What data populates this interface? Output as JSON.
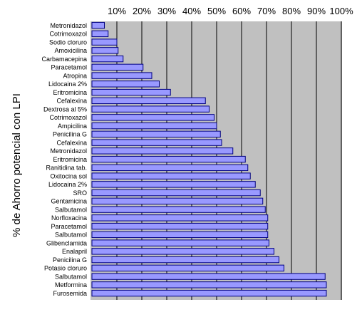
{
  "chart_data": {
    "type": "bar",
    "orientation": "horizontal",
    "title": "",
    "xlabel": "",
    "ylabel": "% de Ahorro potencial con LPI",
    "xlim": [
      0,
      100
    ],
    "x_ticks": [
      "10%",
      "20%",
      "30%",
      "40%",
      "50%",
      "60%",
      "70%",
      "80%",
      "90%",
      "100%"
    ],
    "x_tick_values": [
      10,
      20,
      30,
      40,
      50,
      60,
      70,
      80,
      90,
      100
    ],
    "x_tick_position": "top",
    "grid": true,
    "legend": "none",
    "colors": {
      "bar_fill": "#9999ff",
      "bar_stroke": "#000080",
      "plot_background": "#c0c0c0",
      "gridline": "#000000"
    },
    "categories": [
      "Metronidazol",
      "Cotrimoxazol",
      "Sodio cloruro",
      "Amoxicilina",
      "Carbamacepina",
      "Paracetamol",
      "Atropina",
      "Lidocaina 2%",
      "Eritromicina",
      "Cefalexina",
      "Dextrosa al 5%",
      "Cotrimoxazol",
      "Ampicilina",
      "Penicilina G",
      "Cefalexina",
      "Metronidazol",
      "Eritromicina",
      "Ranitidina tab.",
      "Oxitocina sol",
      "Lidocaina 2%",
      "SRO",
      "Gentamicina",
      "Salbutamol",
      "Norfloxacina",
      "Paracetamol",
      "Salbutamol",
      "Glibenclamida",
      "Enalapril",
      "Penicilina G",
      "Potasio cloruro",
      "Salbutamol",
      "Metformina",
      "Furosemida"
    ],
    "values": [
      5.0,
      6.5,
      10.0,
      10.5,
      12.5,
      20.5,
      24.0,
      27.0,
      31.5,
      45.5,
      47.0,
      49.0,
      50.0,
      51.5,
      52.0,
      56.5,
      61.5,
      62.5,
      63.5,
      65.5,
      67.5,
      68.5,
      69.5,
      70.5,
      70.5,
      70.5,
      71.0,
      73.0,
      75.0,
      77.0,
      93.5,
      94.0,
      94.0
    ]
  }
}
